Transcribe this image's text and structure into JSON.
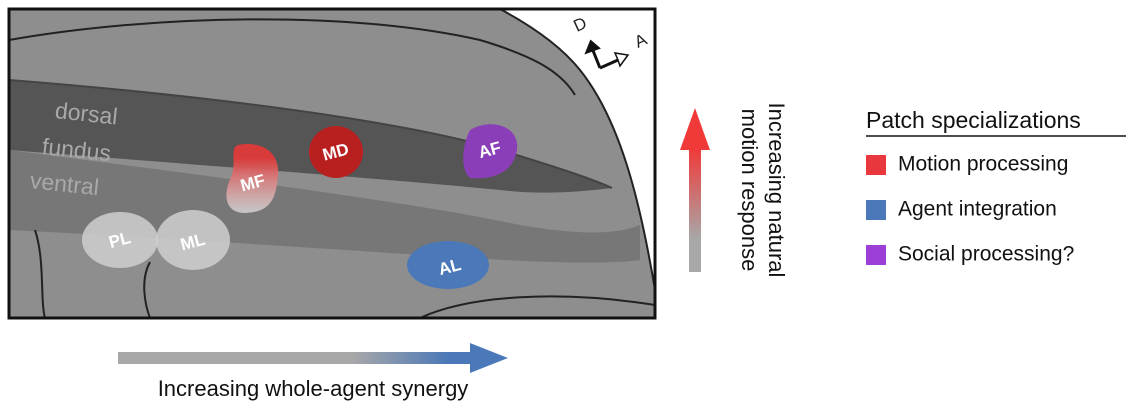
{
  "regions": {
    "dorsal": "dorsal",
    "fundus": "fundus",
    "ventral": "ventral"
  },
  "patches": {
    "PL": "PL",
    "ML": "ML",
    "MF": "MF",
    "MD": "MD",
    "AF": "AF",
    "AL": "AL"
  },
  "compass": {
    "dorsal": "D",
    "anterior": "A"
  },
  "x_axis_label": "Increasing whole-agent synergy",
  "y_axis_label": [
    "Increasing natural",
    "motion response"
  ],
  "legend": {
    "title": "Patch specializations",
    "items": [
      {
        "label": "Motion processing",
        "color": "#e8383d"
      },
      {
        "label": "Agent integration",
        "color": "#4a78b8"
      },
      {
        "label": "Social processing?",
        "color": "#9b3fd6"
      }
    ]
  }
}
